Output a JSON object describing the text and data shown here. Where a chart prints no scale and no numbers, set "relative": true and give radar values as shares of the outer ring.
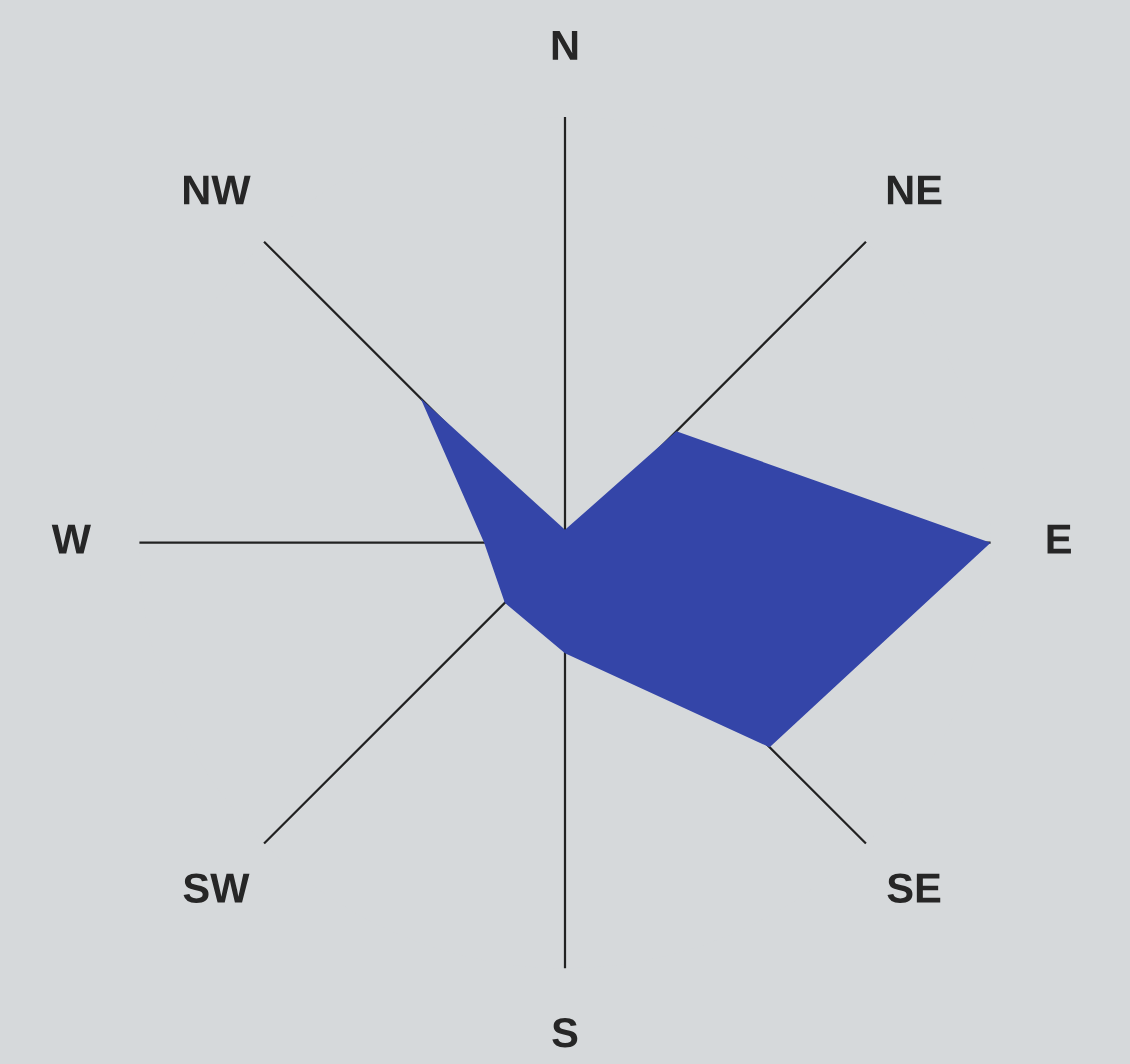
{
  "chart_data": {
    "type": "radar",
    "relative": true,
    "categories": [
      "N",
      "NE",
      "E",
      "SE",
      "S",
      "SW",
      "W",
      "NW"
    ],
    "series": [
      {
        "color": "#3445a8",
        "values": [
          0.03,
          0.37,
          1.0,
          0.68,
          0.26,
          0.2,
          0.19,
          0.48
        ]
      }
    ],
    "grid": "x"
  }
}
